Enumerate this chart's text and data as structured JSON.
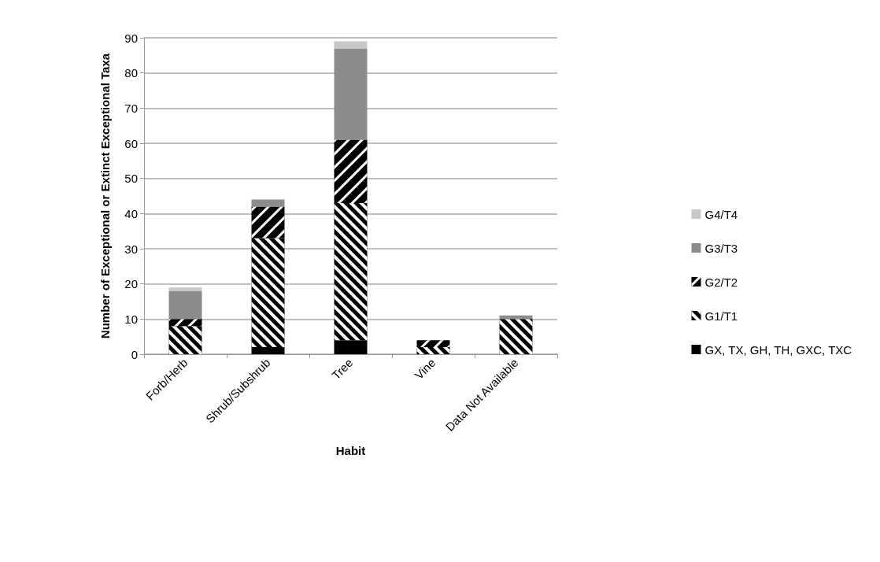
{
  "chart_data": {
    "type": "bar",
    "stacked": true,
    "xlabel": "Habit",
    "ylabel": "Number of Exceptional or Extinct Exceptional Taxa",
    "categories": [
      "Forb/Herb",
      "Shrub/Subshrub",
      "Tree",
      "Vine",
      "Data Not Available"
    ],
    "series": [
      {
        "name": "GX, TX, GH, TH, GXC, TXC",
        "color": "#000000",
        "values": [
          0,
          2,
          4,
          0,
          0
        ]
      },
      {
        "name": "G1/T1",
        "color": "#000000",
        "values": [
          8,
          31,
          39,
          2,
          10
        ]
      },
      {
        "name": "G2/T2",
        "color": "#000000",
        "values": [
          2,
          9,
          18,
          2,
          0
        ]
      },
      {
        "name": "G3/T3",
        "color": "#8c8c8c",
        "values": [
          8,
          2,
          26,
          0,
          1
        ]
      },
      {
        "name": "G4/T4",
        "color": "#c8c8c8",
        "values": [
          1,
          0,
          2,
          0,
          0
        ]
      }
    ],
    "ylim": [
      0,
      90
    ],
    "yticks": [
      0,
      10,
      20,
      30,
      40,
      50,
      60,
      70,
      80,
      90
    ],
    "grid": "y",
    "legend": "right"
  }
}
